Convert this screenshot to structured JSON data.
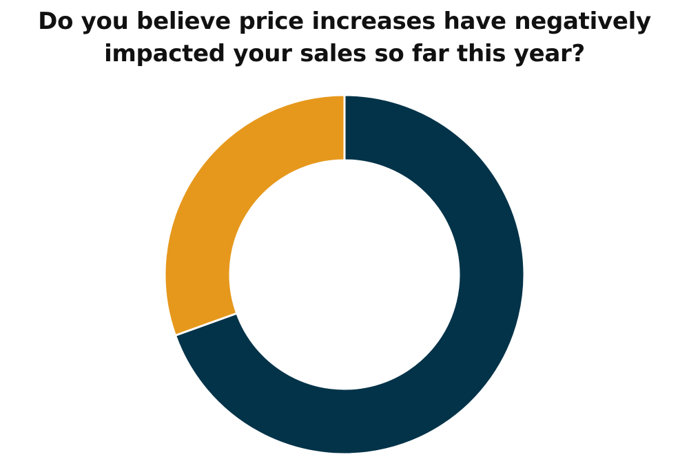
{
  "chart_data": {
    "type": "pie",
    "donut": true,
    "title": "Do you believe price increases have negatively\nimpacted your sales so far this year?",
    "slices": [
      {
        "value": 69.5,
        "color": "#023349"
      },
      {
        "value": 30.5,
        "color": "#e6981c"
      }
    ],
    "legend": "none",
    "start_angle_deg": 0,
    "direction": "clockwise"
  }
}
